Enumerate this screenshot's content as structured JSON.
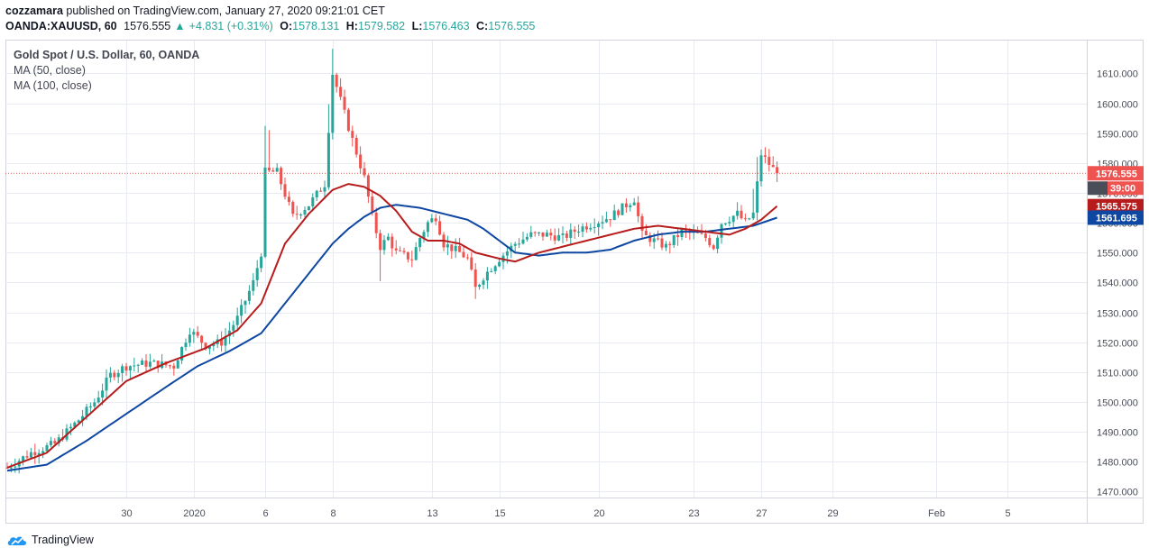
{
  "header": {
    "author": "cozzamara",
    "published_text": "published on TradingView.com, January 27, 2020 09:21:01 CET"
  },
  "quote": {
    "symbol": "OANDA:XAUUSD, 60",
    "last": "1576.555",
    "change": "+4.831 (+0.31%)",
    "o_label": "O:",
    "open": "1578.131",
    "h_label": "H:",
    "high": "1579.582",
    "l_label": "L:",
    "low": "1576.463",
    "c_label": "C:",
    "close": "1576.555"
  },
  "legend": {
    "title": "Gold Spot / U.S. Dollar, 60, OANDA",
    "ma1": "MA (50, close)",
    "ma2": "MA (100, close)"
  },
  "brand": {
    "name": "TradingView"
  },
  "colors": {
    "up": "#26a69a",
    "down": "#ef5350",
    "ma50": "#b71c1c",
    "ma100": "#0d47a1",
    "grid": "#e8ebf2",
    "axis_text": "#4a4e58"
  },
  "chart_data": {
    "type": "candlestick",
    "title": "Gold Spot / U.S. Dollar, 60, OANDA",
    "ylim": [
      1468,
      1621
    ],
    "y_ticks": [
      "1470.000",
      "1480.000",
      "1490.000",
      "1500.000",
      "1510.000",
      "1520.000",
      "1530.000",
      "1540.000",
      "1550.000",
      "1560.000",
      "1570.000",
      "1580.000",
      "1590.000",
      "1600.000",
      "1610.000"
    ],
    "y_tick_values": [
      1470,
      1480,
      1490,
      1500,
      1510,
      1520,
      1530,
      1540,
      1550,
      1560,
      1570,
      1580,
      1590,
      1600,
      1610
    ],
    "x_ticks": [
      "30",
      "2020",
      "6",
      "8",
      "13",
      "15",
      "20",
      "23",
      "27",
      "29",
      "Feb",
      "5"
    ],
    "x_tick_index": [
      30,
      47,
      65,
      82,
      107,
      124,
      149,
      173,
      190,
      208,
      234,
      252
    ],
    "bar_count": 267,
    "price_anchors": [
      [
        0,
        1478
      ],
      [
        6,
        1483
      ],
      [
        12,
        1486
      ],
      [
        18,
        1494
      ],
      [
        22,
        1500
      ],
      [
        26,
        1509
      ],
      [
        30,
        1512
      ],
      [
        36,
        1513
      ],
      [
        42,
        1512
      ],
      [
        46,
        1524
      ],
      [
        50,
        1519
      ],
      [
        54,
        1520
      ],
      [
        58,
        1528
      ],
      [
        62,
        1540
      ],
      [
        64,
        1550
      ],
      [
        65,
        1577
      ],
      [
        68,
        1577
      ],
      [
        72,
        1562
      ],
      [
        76,
        1566
      ],
      [
        80,
        1573
      ],
      [
        82,
        1610
      ],
      [
        86,
        1592
      ],
      [
        90,
        1575
      ],
      [
        92,
        1562
      ],
      [
        94,
        1552
      ],
      [
        96,
        1555
      ],
      [
        98,
        1550
      ],
      [
        102,
        1548
      ],
      [
        104,
        1555
      ],
      [
        106,
        1560
      ],
      [
        108,
        1562
      ],
      [
        110,
        1553
      ],
      [
        114,
        1550
      ],
      [
        116,
        1548
      ],
      [
        118,
        1538
      ],
      [
        120,
        1542
      ],
      [
        124,
        1548
      ],
      [
        128,
        1553
      ],
      [
        132,
        1556
      ],
      [
        136,
        1556
      ],
      [
        140,
        1555
      ],
      [
        144,
        1558
      ],
      [
        148,
        1560
      ],
      [
        152,
        1562
      ],
      [
        156,
        1566
      ],
      [
        158,
        1568
      ],
      [
        160,
        1556
      ],
      [
        166,
        1552
      ],
      [
        170,
        1557
      ],
      [
        174,
        1556
      ],
      [
        176,
        1555
      ],
      [
        178,
        1552
      ],
      [
        180,
        1560
      ],
      [
        184,
        1563
      ],
      [
        186,
        1560
      ],
      [
        188,
        1563
      ],
      [
        190,
        1583
      ],
      [
        193,
        1578
      ],
      [
        194,
        1576.555
      ]
    ],
    "ma50_anchors": [
      [
        0,
        1478
      ],
      [
        10,
        1483
      ],
      [
        20,
        1495
      ],
      [
        30,
        1507
      ],
      [
        40,
        1513
      ],
      [
        50,
        1518
      ],
      [
        58,
        1524
      ],
      [
        64,
        1533
      ],
      [
        70,
        1553
      ],
      [
        76,
        1563
      ],
      [
        82,
        1571
      ],
      [
        86,
        1573
      ],
      [
        90,
        1572
      ],
      [
        94,
        1569
      ],
      [
        98,
        1564
      ],
      [
        102,
        1557
      ],
      [
        106,
        1554
      ],
      [
        110,
        1554
      ],
      [
        114,
        1553
      ],
      [
        118,
        1550
      ],
      [
        124,
        1548
      ],
      [
        128,
        1547
      ],
      [
        134,
        1550
      ],
      [
        140,
        1552
      ],
      [
        146,
        1554
      ],
      [
        152,
        1556
      ],
      [
        158,
        1558
      ],
      [
        164,
        1559
      ],
      [
        170,
        1558
      ],
      [
        176,
        1557
      ],
      [
        182,
        1556
      ],
      [
        186,
        1558
      ],
      [
        190,
        1561
      ],
      [
        194,
        1565.575
      ]
    ],
    "ma100_anchors": [
      [
        0,
        1477
      ],
      [
        10,
        1479
      ],
      [
        20,
        1487
      ],
      [
        30,
        1496
      ],
      [
        40,
        1505
      ],
      [
        48,
        1512
      ],
      [
        56,
        1517
      ],
      [
        64,
        1523
      ],
      [
        70,
        1533
      ],
      [
        76,
        1543
      ],
      [
        82,
        1553
      ],
      [
        86,
        1558
      ],
      [
        90,
        1562
      ],
      [
        94,
        1565
      ],
      [
        98,
        1566
      ],
      [
        104,
        1565
      ],
      [
        110,
        1563
      ],
      [
        116,
        1561
      ],
      [
        120,
        1558
      ],
      [
        124,
        1554
      ],
      [
        128,
        1550
      ],
      [
        134,
        1549
      ],
      [
        140,
        1550
      ],
      [
        146,
        1550
      ],
      [
        152,
        1551
      ],
      [
        158,
        1554
      ],
      [
        164,
        1556
      ],
      [
        170,
        1557
      ],
      [
        176,
        1557
      ],
      [
        182,
        1558
      ],
      [
        188,
        1559
      ],
      [
        194,
        1561.695
      ]
    ],
    "last_price": "1576.555",
    "countdown": "39:00",
    "ma50_last": "1565.575",
    "ma100_last": "1561.695",
    "series": [
      {
        "name": "MA (50, close)",
        "last": 1565.575
      },
      {
        "name": "MA (100, close)",
        "last": 1561.695
      }
    ]
  }
}
